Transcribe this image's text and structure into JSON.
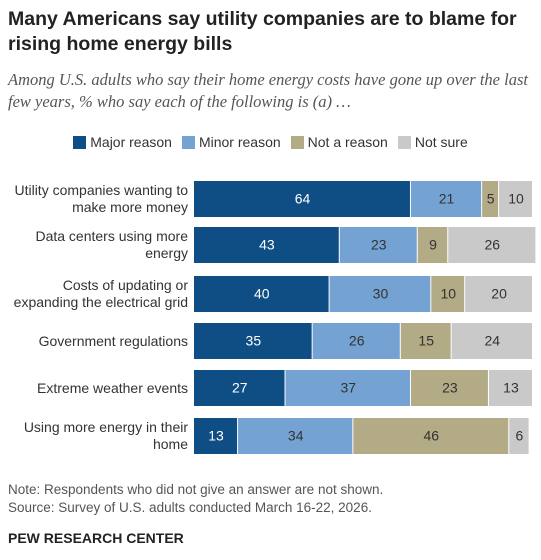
{
  "chart_data": {
    "type": "stacked-bar-horizontal",
    "title": "Many Americans say utility companies are to blame for rising home energy bills",
    "subtitle": "Among U.S. adults who say their home energy costs have gone up over the last few years, % who say each of the following is (a) …",
    "categories": [
      "Utility companies wanting to make more money",
      "Data centers using more energy",
      "Costs of updating or expanding the electrical grid",
      "Government regulations",
      "Extreme weather events",
      "Using more energy in their home"
    ],
    "series": [
      {
        "name": "Major reason",
        "color": "#0e4e84",
        "values": [
          64,
          43,
          40,
          35,
          27,
          13
        ]
      },
      {
        "name": "Minor reason",
        "color": "#73a2d3",
        "values": [
          21,
          23,
          30,
          26,
          37,
          34
        ]
      },
      {
        "name": "Not a reason",
        "color": "#b3aa86",
        "values": [
          5,
          9,
          10,
          15,
          23,
          46
        ]
      },
      {
        "name": "Not sure",
        "color": "#c9c9c9",
        "values": [
          10,
          26,
          20,
          24,
          13,
          6
        ]
      }
    ],
    "notes": [
      "Note: Respondents who did not give an answer are not shown.",
      "Source: Survey of U.S. adults conducted March 16-22, 2026."
    ],
    "source": "PEW RESEARCH CENTER"
  }
}
